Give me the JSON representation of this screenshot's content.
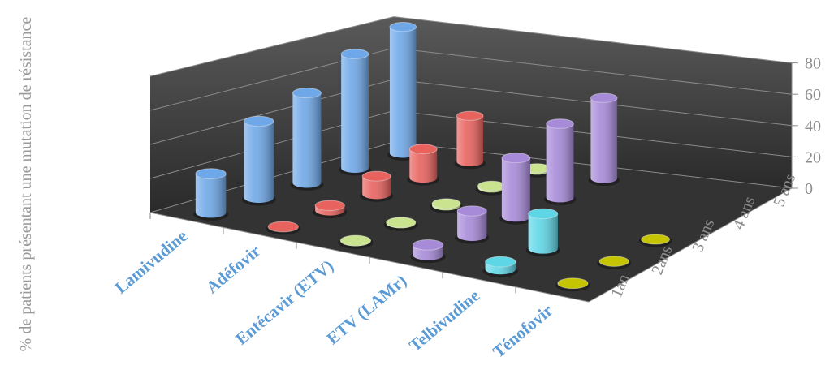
{
  "chart_data": {
    "type": "bar3d",
    "y_label": "% de patients présentant une mutation de résistance",
    "categories": [
      "1an",
      "2ans",
      "3 ans",
      "4 ans",
      "5 ans"
    ],
    "series": [
      {
        "name": "Lamivudine",
        "color": "#6fa8e8",
        "values": [
          23,
          46,
          55,
          71,
          80
        ]
      },
      {
        "name": "Adéfovir",
        "color": "#e8625e",
        "values": [
          0,
          3,
          11,
          18,
          29
        ]
      },
      {
        "name": "Entécavir (ETV)",
        "color": "#c9e38e",
        "values": [
          0.2,
          0.5,
          1.2,
          1.2,
          1.2
        ]
      },
      {
        "name": "ETV (LAMr)",
        "color": "#a78ad8",
        "values": [
          6,
          15,
          36,
          46,
          51
        ]
      },
      {
        "name": "Telbivudine",
        "color": "#5fd6e6",
        "values": [
          4.4,
          21,
          null,
          null,
          null
        ]
      },
      {
        "name": "Ténofovir",
        "color": "#c4c400",
        "values": [
          0,
          0,
          0,
          null,
          null
        ]
      }
    ],
    "ylim": [
      0,
      80
    ],
    "yticks": [
      0,
      20,
      40,
      60,
      80
    ],
    "grid": true
  }
}
